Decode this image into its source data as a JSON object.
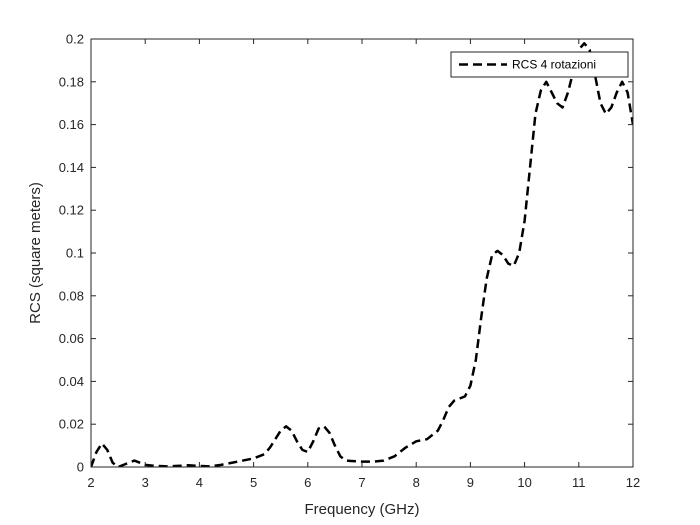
{
  "chart_data": {
    "type": "line",
    "title": "",
    "xlabel": "Frequency (GHz)",
    "ylabel": "RCS (square meters)",
    "xlim": [
      2,
      12
    ],
    "ylim": [
      0,
      0.2
    ],
    "x_ticks": [
      2,
      3,
      4,
      5,
      6,
      7,
      8,
      9,
      10,
      11,
      12
    ],
    "y_ticks": [
      0,
      0.02,
      0.04,
      0.06,
      0.08,
      0.1,
      0.12,
      0.14,
      0.16,
      0.18,
      0.2
    ],
    "x_tick_labels": [
      "2",
      "3",
      "4",
      "5",
      "6",
      "7",
      "8",
      "9",
      "10",
      "11",
      "12"
    ],
    "y_tick_labels": [
      "0",
      "0.02",
      "0.04",
      "0.06",
      "0.08",
      "0.1",
      "0.12",
      "0.14",
      "0.16",
      "0.18",
      "0.2"
    ],
    "grid": false,
    "legend_position": "top-right",
    "line_color": "#000000",
    "line_style": "dashed",
    "series": [
      {
        "name": "RCS 4 rotazioni",
        "x": [
          2.0,
          2.1,
          2.2,
          2.3,
          2.4,
          2.5,
          2.6,
          2.7,
          2.8,
          2.9,
          3.0,
          3.2,
          3.4,
          3.6,
          3.8,
          4.0,
          4.2,
          4.4,
          4.6,
          4.8,
          5.0,
          5.2,
          5.3,
          5.4,
          5.5,
          5.6,
          5.7,
          5.8,
          5.9,
          6.0,
          6.1,
          6.2,
          6.3,
          6.4,
          6.5,
          6.6,
          6.7,
          6.8,
          7.0,
          7.2,
          7.4,
          7.6,
          7.8,
          8.0,
          8.2,
          8.4,
          8.5,
          8.6,
          8.7,
          8.8,
          8.9,
          9.0,
          9.1,
          9.2,
          9.3,
          9.4,
          9.5,
          9.6,
          9.7,
          9.8,
          9.9,
          10.0,
          10.1,
          10.2,
          10.3,
          10.4,
          10.5,
          10.6,
          10.7,
          10.8,
          10.9,
          11.0,
          11.1,
          11.2,
          11.3,
          11.4,
          11.5,
          11.6,
          11.7,
          11.8,
          11.9,
          12.0
        ],
        "y": [
          0.0,
          0.007,
          0.011,
          0.008,
          0.002,
          0.0,
          0.001,
          0.002,
          0.003,
          0.002,
          0.001,
          0.0005,
          0.0003,
          0.0005,
          0.0008,
          0.0005,
          0.0003,
          0.001,
          0.002,
          0.003,
          0.004,
          0.006,
          0.009,
          0.013,
          0.017,
          0.019,
          0.017,
          0.012,
          0.008,
          0.007,
          0.012,
          0.018,
          0.019,
          0.016,
          0.01,
          0.005,
          0.003,
          0.0028,
          0.0025,
          0.0025,
          0.003,
          0.005,
          0.009,
          0.012,
          0.013,
          0.017,
          0.022,
          0.028,
          0.031,
          0.032,
          0.033,
          0.038,
          0.05,
          0.07,
          0.088,
          0.099,
          0.101,
          0.099,
          0.095,
          0.094,
          0.1,
          0.115,
          0.14,
          0.165,
          0.176,
          0.18,
          0.175,
          0.17,
          0.168,
          0.175,
          0.185,
          0.195,
          0.198,
          0.195,
          0.183,
          0.17,
          0.165,
          0.168,
          0.175,
          0.18,
          0.175,
          0.16
        ]
      }
    ]
  }
}
